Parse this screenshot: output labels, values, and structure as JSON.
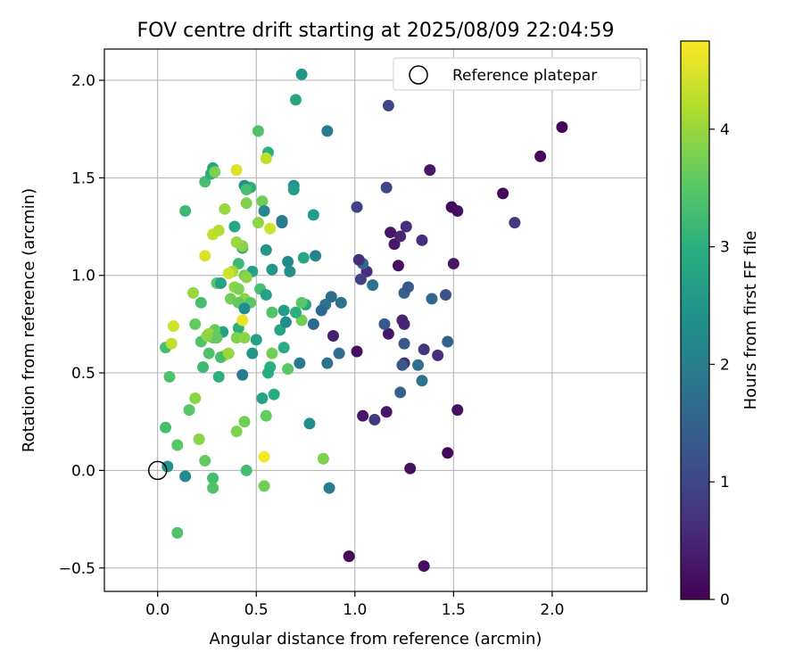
{
  "chart_data": {
    "type": "scatter",
    "title": "FOV centre drift starting at 2025/08/09 22:04:59",
    "xlabel": "Angular distance from reference (arcmin)",
    "ylabel": "Rotation from reference (arcmin)",
    "xlim": [
      -0.27,
      2.48
    ],
    "ylim": [
      -0.62,
      2.16
    ],
    "xticks": [
      "0.0",
      "0.5",
      "1.0",
      "1.5",
      "2.0"
    ],
    "yticks": [
      "−0.5",
      "0.0",
      "0.5",
      "1.0",
      "1.5",
      "2.0"
    ],
    "grid": true,
    "legend": {
      "position": "top-right",
      "entries": [
        "Reference platepar"
      ]
    },
    "reference_point": {
      "x": 0.0,
      "y": 0.0
    },
    "colorbar": {
      "label": "Hours from first FF file",
      "range": [
        0,
        4.75
      ],
      "ticks": [
        "0",
        "1",
        "2",
        "3",
        "4"
      ],
      "colormap": "viridis"
    },
    "points": [
      [
        2.05,
        1.76,
        0.05
      ],
      [
        1.94,
        1.61,
        0.08
      ],
      [
        1.75,
        1.42,
        0.1
      ],
      [
        1.81,
        1.27,
        0.8
      ],
      [
        1.38,
        1.54,
        0.3
      ],
      [
        1.49,
        1.35,
        0.1
      ],
      [
        1.52,
        1.33,
        0.2
      ],
      [
        1.5,
        1.06,
        0.3
      ],
      [
        1.52,
        0.31,
        0.2
      ],
      [
        1.47,
        0.09,
        0.1
      ],
      [
        1.28,
        0.01,
        0.2
      ],
      [
        1.35,
        -0.49,
        0.2
      ],
      [
        0.97,
        -0.44,
        0.1
      ],
      [
        1.16,
        0.3,
        0.3
      ],
      [
        1.04,
        0.28,
        0.3
      ],
      [
        1.1,
        0.26,
        0.8
      ],
      [
        1.01,
        0.61,
        0.2
      ],
      [
        0.89,
        0.69,
        0.4
      ],
      [
        1.17,
        0.7,
        0.3
      ],
      [
        1.24,
        0.77,
        0.5
      ],
      [
        1.25,
        0.55,
        0.5
      ],
      [
        1.42,
        0.59,
        0.6
      ],
      [
        1.35,
        0.62,
        0.7
      ],
      [
        1.47,
        0.66,
        1.5
      ],
      [
        1.32,
        0.54,
        1.7
      ],
      [
        1.34,
        0.46,
        1.8
      ],
      [
        1.23,
        0.4,
        1.5
      ],
      [
        1.24,
        0.54,
        1.3
      ],
      [
        1.25,
        0.65,
        1.3
      ],
      [
        1.25,
        0.91,
        1.5
      ],
      [
        1.27,
        0.94,
        1.3
      ],
      [
        1.22,
        1.05,
        0.2
      ],
      [
        1.2,
        1.16,
        0.3
      ],
      [
        1.18,
        1.22,
        0.3
      ],
      [
        1.23,
        1.2,
        0.5
      ],
      [
        1.26,
        1.25,
        0.6
      ],
      [
        1.34,
        1.18,
        0.6
      ],
      [
        1.17,
        1.87,
        1.0
      ],
      [
        1.16,
        1.45,
        1.0
      ],
      [
        1.01,
        1.35,
        0.9
      ],
      [
        1.06,
        1.02,
        0.6
      ],
      [
        1.03,
        0.98,
        0.9
      ],
      [
        1.04,
        1.06,
        1.6
      ],
      [
        1.02,
        1.08,
        0.6
      ],
      [
        1.09,
        0.95,
        1.8
      ],
      [
        1.15,
        0.75,
        1.3
      ],
      [
        1.25,
        0.75,
        0.5
      ],
      [
        1.39,
        0.88,
        1.6
      ],
      [
        1.46,
        0.9,
        1.2
      ],
      [
        0.88,
        0.89,
        1.7
      ],
      [
        0.93,
        0.86,
        1.8
      ],
      [
        0.85,
        0.85,
        1.8
      ],
      [
        0.83,
        0.82,
        1.6
      ],
      [
        0.79,
        0.75,
        1.6
      ],
      [
        0.75,
        0.85,
        2.8
      ],
      [
        0.92,
        0.6,
        1.7
      ],
      [
        0.86,
        0.55,
        1.8
      ],
      [
        0.72,
        0.55,
        1.9
      ],
      [
        0.77,
        0.24,
        2.3
      ],
      [
        0.87,
        -0.09,
        2.0
      ],
      [
        0.86,
        1.74,
        2.0
      ],
      [
        0.73,
        2.03,
        2.5
      ],
      [
        0.7,
        1.9,
        2.8
      ],
      [
        0.69,
        1.46,
        2.4
      ],
      [
        0.69,
        1.44,
        2.6
      ],
      [
        0.79,
        1.31,
        2.6
      ],
      [
        0.74,
        1.09,
        2.8
      ],
      [
        0.8,
        1.1,
        2.1
      ],
      [
        0.66,
        1.07,
        2.2
      ],
      [
        0.67,
        1.02,
        2.3
      ],
      [
        0.58,
        1.03,
        2.5
      ],
      [
        0.63,
        1.28,
        1.9
      ],
      [
        0.63,
        1.27,
        2.0
      ],
      [
        0.55,
        1.13,
        2.5
      ],
      [
        0.56,
        1.63,
        3.0
      ],
      [
        0.55,
        1.6,
        4.3
      ],
      [
        0.51,
        1.74,
        3.4
      ],
      [
        0.53,
        1.38,
        3.7
      ],
      [
        0.54,
        1.33,
        2.2
      ],
      [
        0.47,
        1.45,
        3.0
      ],
      [
        0.51,
        1.27,
        3.9
      ],
      [
        0.57,
        1.24,
        4.4
      ],
      [
        0.44,
        1.46,
        2.4
      ],
      [
        0.45,
        1.44,
        3.3
      ],
      [
        0.45,
        1.37,
        3.8
      ],
      [
        0.43,
        1.14,
        2.8
      ],
      [
        0.39,
        1.25,
        2.8
      ],
      [
        0.43,
        1.15,
        3.9
      ],
      [
        0.4,
        1.17,
        4.0
      ],
      [
        0.48,
        1.02,
        2.7
      ],
      [
        0.41,
        1.06,
        3.2
      ],
      [
        0.38,
        1.02,
        4.1
      ],
      [
        0.36,
        1.01,
        4.4
      ],
      [
        0.44,
        1.0,
        3.7
      ],
      [
        0.45,
        0.99,
        3.9
      ],
      [
        0.3,
        0.96,
        3.5
      ],
      [
        0.32,
        0.96,
        2.7
      ],
      [
        0.39,
        0.94,
        3.9
      ],
      [
        0.41,
        0.93,
        3.8
      ],
      [
        0.44,
        0.88,
        3.9
      ],
      [
        0.37,
        0.88,
        3.7
      ],
      [
        0.41,
        0.86,
        3.6
      ],
      [
        0.47,
        0.86,
        3.5
      ],
      [
        0.52,
        0.93,
        3.3
      ],
      [
        0.55,
        0.9,
        2.7
      ],
      [
        0.44,
        0.83,
        2.3
      ],
      [
        0.41,
        0.73,
        3.0
      ],
      [
        0.43,
        0.77,
        4.6
      ],
      [
        0.4,
        0.68,
        3.8
      ],
      [
        0.44,
        0.68,
        3.9
      ],
      [
        0.33,
        0.71,
        2.7
      ],
      [
        0.29,
        0.72,
        3.6
      ],
      [
        0.26,
        0.7,
        4.0
      ],
      [
        0.28,
        0.68,
        3.7
      ],
      [
        0.3,
        0.68,
        3.6
      ],
      [
        0.22,
        0.66,
        3.4
      ],
      [
        0.19,
        0.75,
        3.6
      ],
      [
        0.25,
        0.69,
        3.9
      ],
      [
        0.34,
        0.59,
        4.4
      ],
      [
        0.26,
        0.6,
        3.4
      ],
      [
        0.23,
        0.53,
        3.2
      ],
      [
        0.32,
        0.58,
        3.3
      ],
      [
        0.36,
        0.6,
        4.0
      ],
      [
        0.31,
        0.48,
        3.0
      ],
      [
        0.43,
        0.49,
        2.0
      ],
      [
        0.48,
        0.6,
        2.5
      ],
      [
        0.5,
        0.67,
        2.7
      ],
      [
        0.57,
        0.53,
        3.0
      ],
      [
        0.56,
        0.5,
        2.9
      ],
      [
        0.58,
        0.6,
        3.7
      ],
      [
        0.58,
        0.81,
        3.4
      ],
      [
        0.62,
        0.72,
        2.8
      ],
      [
        0.64,
        0.63,
        2.9
      ],
      [
        0.64,
        0.82,
        2.6
      ],
      [
        0.65,
        0.76,
        2.3
      ],
      [
        0.66,
        0.52,
        3.5
      ],
      [
        0.73,
        0.77,
        3.7
      ],
      [
        0.73,
        0.86,
        3.5
      ],
      [
        0.7,
        0.81,
        3.0
      ],
      [
        0.59,
        0.39,
        2.9
      ],
      [
        0.53,
        0.37,
        2.7
      ],
      [
        0.55,
        0.28,
        3.6
      ],
      [
        0.44,
        0.25,
        3.7
      ],
      [
        0.4,
        0.2,
        3.8
      ],
      [
        0.45,
        0.0,
        3.3
      ],
      [
        0.54,
        0.07,
        4.7
      ],
      [
        0.54,
        -0.08,
        3.7
      ],
      [
        0.84,
        0.06,
        3.8
      ],
      [
        0.28,
        -0.04,
        3.3
      ],
      [
        0.28,
        -0.09,
        3.4
      ],
      [
        0.24,
        0.05,
        3.6
      ],
      [
        0.21,
        0.16,
        3.9
      ],
      [
        0.19,
        0.37,
        3.9
      ],
      [
        0.16,
        0.31,
        3.5
      ],
      [
        0.1,
        0.13,
        3.5
      ],
      [
        0.04,
        0.22,
        3.3
      ],
      [
        0.05,
        0.02,
        2.4
      ],
      [
        0.14,
        -0.03,
        2.2
      ],
      [
        0.1,
        -0.32,
        3.4
      ],
      [
        0.06,
        0.48,
        3.4
      ],
      [
        0.04,
        0.63,
        3.3
      ],
      [
        0.07,
        0.65,
        4.3
      ],
      [
        0.08,
        0.74,
        4.4
      ],
      [
        0.18,
        0.91,
        4.0
      ],
      [
        0.22,
        0.86,
        3.3
      ],
      [
        0.24,
        1.1,
        4.5
      ],
      [
        0.28,
        1.21,
        4.3
      ],
      [
        0.31,
        1.23,
        4.2
      ],
      [
        0.34,
        1.34,
        4.0
      ],
      [
        0.24,
        1.48,
        3.3
      ],
      [
        0.27,
        1.52,
        3.0
      ],
      [
        0.28,
        1.55,
        2.8
      ],
      [
        0.29,
        1.53,
        3.8
      ],
      [
        0.4,
        1.54,
        4.5
      ],
      [
        0.14,
        1.33,
        3.2
      ]
    ]
  }
}
